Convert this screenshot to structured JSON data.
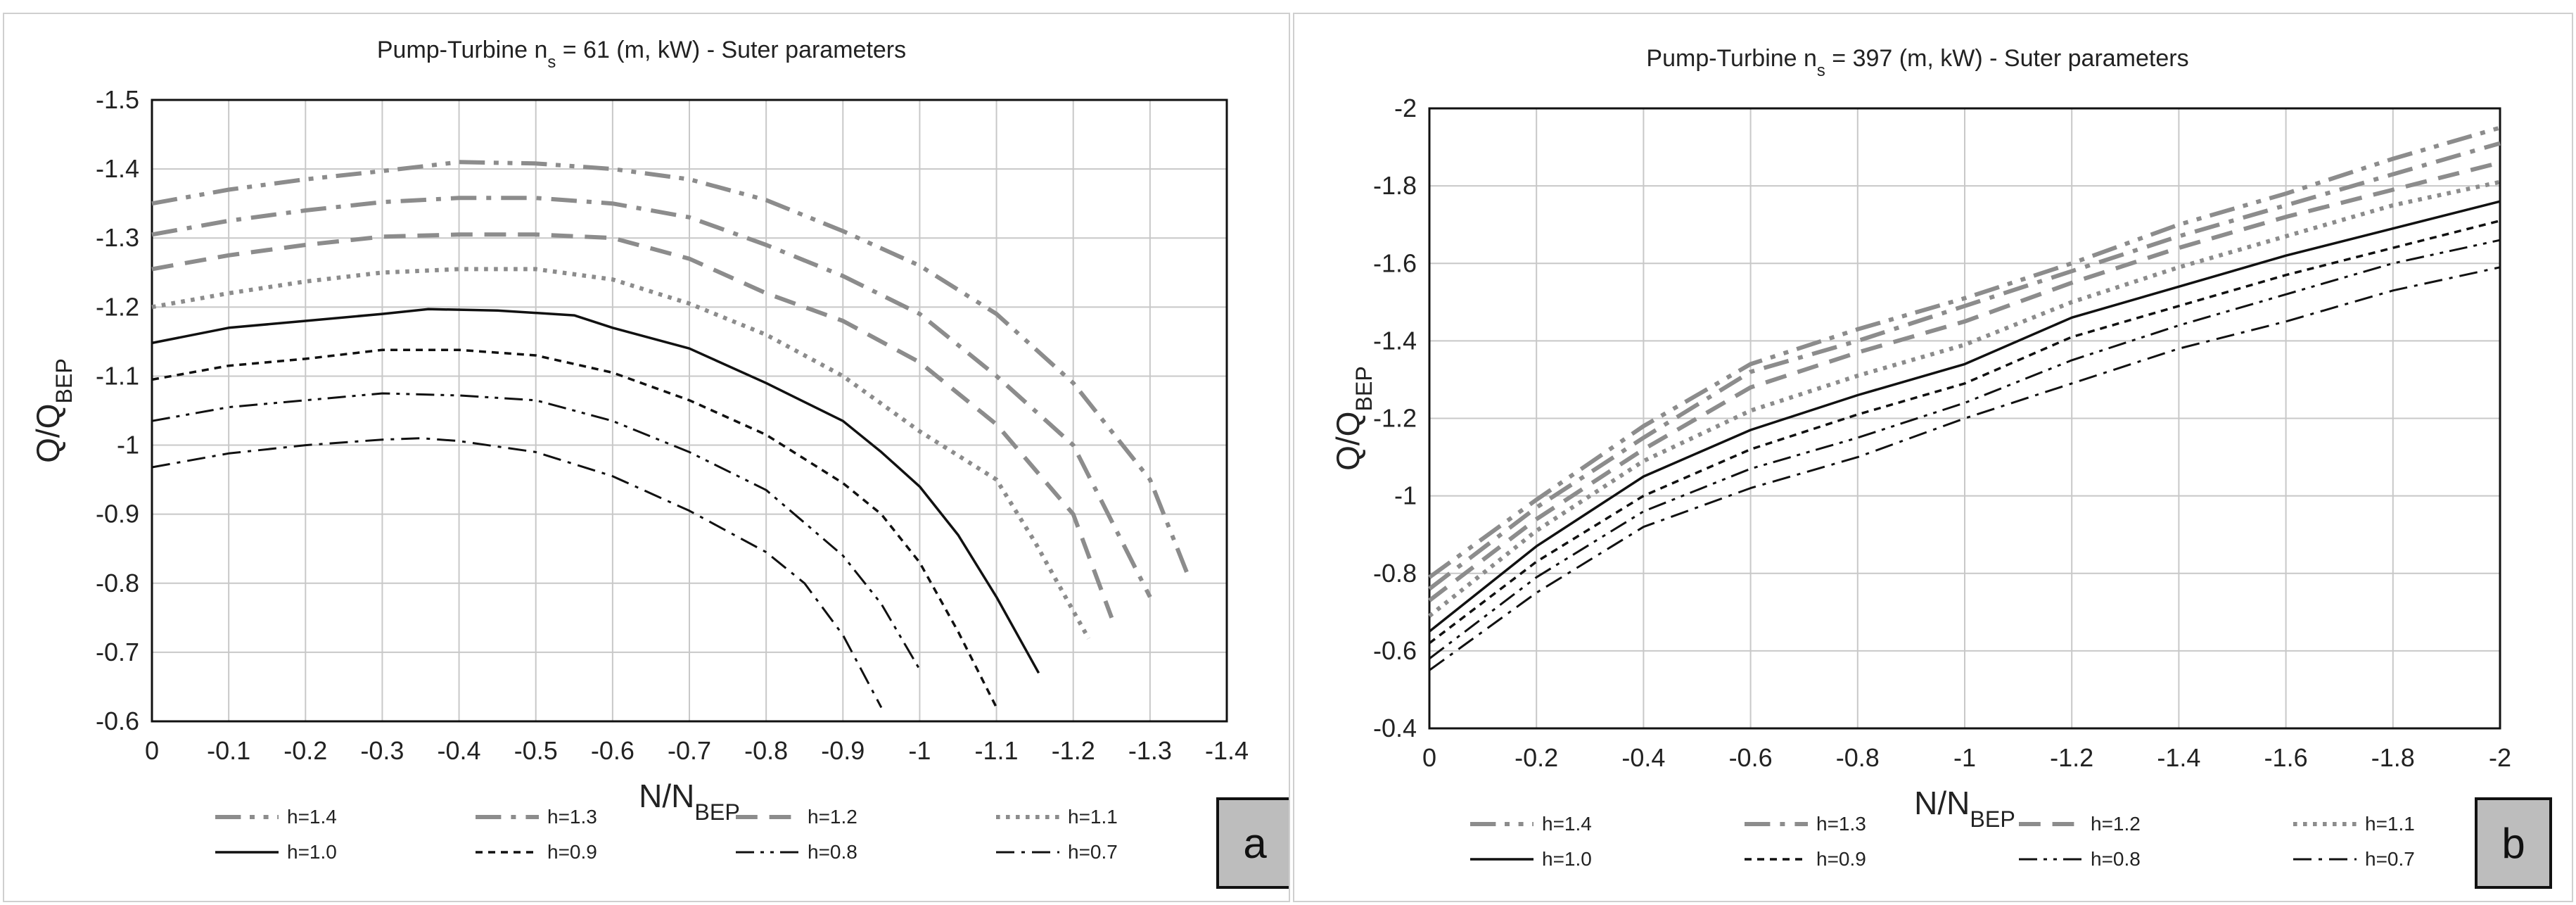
{
  "chart_data": [
    {
      "type": "line",
      "title_prefix": "Pump-Turbine  n",
      "title_sub": "s",
      "title_suffix": " = 61 (m, kW) - Suter parameters",
      "xlabel_main": "N/N",
      "xlabel_sub": "BEP",
      "ylabel_main": "Q/Q",
      "ylabel_sub": "BEP",
      "panel_label": "a",
      "xlim": [
        0,
        -1.4
      ],
      "ylim": [
        -0.6,
        -1.5
      ],
      "x_ticks": [
        "0",
        "-0.1",
        "-0.2",
        "-0.3",
        "-0.4",
        "-0.5",
        "-0.6",
        "-0.7",
        "-0.8",
        "-0.9",
        "-1",
        "-1.1",
        "-1.2",
        "-1.3",
        "-1.4"
      ],
      "y_ticks": [
        "-1.5",
        "-1.4",
        "-1.3",
        "-1.2",
        "-1.1",
        "-1",
        "-0.9",
        "-0.8",
        "-0.7",
        "-0.6"
      ],
      "grid": true,
      "legend_position": "bottom",
      "series": [
        {
          "name": "h=1.4",
          "style": "dashdotdot",
          "color": "#8c8c8c",
          "width": "thick",
          "x": [
            0,
            -0.1,
            -0.2,
            -0.3,
            -0.4,
            -0.5,
            -0.6,
            -0.7,
            -0.8,
            -0.9,
            -1.0,
            -1.1,
            -1.2,
            -1.3,
            -1.35
          ],
          "y": [
            -1.35,
            -1.37,
            -1.385,
            -1.397,
            -1.41,
            -1.408,
            -1.4,
            -1.385,
            -1.355,
            -1.31,
            -1.26,
            -1.19,
            -1.09,
            -0.95,
            -0.81
          ]
        },
        {
          "name": "h=1.3",
          "style": "dashdot",
          "color": "#8c8c8c",
          "width": "thick",
          "x": [
            0,
            -0.1,
            -0.2,
            -0.3,
            -0.4,
            -0.5,
            -0.6,
            -0.7,
            -0.8,
            -0.9,
            -1.0,
            -1.1,
            -1.2,
            -1.3
          ],
          "y": [
            -1.305,
            -1.325,
            -1.34,
            -1.352,
            -1.358,
            -1.358,
            -1.35,
            -1.33,
            -1.29,
            -1.245,
            -1.19,
            -1.1,
            -1.0,
            -0.78
          ]
        },
        {
          "name": "h=1.2",
          "style": "dash",
          "color": "#8c8c8c",
          "width": "thick",
          "x": [
            0,
            -0.1,
            -0.2,
            -0.3,
            -0.4,
            -0.5,
            -0.6,
            -0.7,
            -0.8,
            -0.9,
            -1.0,
            -1.1,
            -1.2,
            -1.25
          ],
          "y": [
            -1.255,
            -1.275,
            -1.29,
            -1.302,
            -1.305,
            -1.305,
            -1.3,
            -1.27,
            -1.22,
            -1.18,
            -1.12,
            -1.03,
            -0.9,
            -0.75
          ]
        },
        {
          "name": "h=1.1",
          "style": "dot",
          "color": "#8c8c8c",
          "width": "thick",
          "x": [
            0,
            -0.1,
            -0.2,
            -0.3,
            -0.4,
            -0.5,
            -0.6,
            -0.7,
            -0.8,
            -0.9,
            -1.0,
            -1.1,
            -1.15,
            -1.22
          ],
          "y": [
            -1.2,
            -1.22,
            -1.237,
            -1.25,
            -1.255,
            -1.255,
            -1.24,
            -1.205,
            -1.16,
            -1.1,
            -1.02,
            -0.95,
            -0.86,
            -0.72
          ]
        },
        {
          "name": "h=1.0",
          "style": "solid",
          "color": "#111111",
          "width": "normal",
          "x": [
            0,
            -0.1,
            -0.2,
            -0.3,
            -0.36,
            -0.45,
            -0.55,
            -0.6,
            -0.7,
            -0.8,
            -0.9,
            -0.95,
            -1.0,
            -1.05,
            -1.1,
            -1.155
          ],
          "y": [
            -1.148,
            -1.17,
            -1.18,
            -1.19,
            -1.197,
            -1.195,
            -1.188,
            -1.17,
            -1.14,
            -1.09,
            -1.035,
            -0.99,
            -0.94,
            -0.87,
            -0.78,
            -0.67
          ]
        },
        {
          "name": "h=0.9",
          "style": "shortdash",
          "color": "#111111",
          "width": "normal",
          "x": [
            0,
            -0.1,
            -0.2,
            -0.3,
            -0.4,
            -0.5,
            -0.6,
            -0.7,
            -0.8,
            -0.9,
            -0.95,
            -1.0,
            -1.05,
            -1.1
          ],
          "y": [
            -1.095,
            -1.115,
            -1.125,
            -1.138,
            -1.138,
            -1.13,
            -1.105,
            -1.065,
            -1.015,
            -0.945,
            -0.9,
            -0.83,
            -0.73,
            -0.62
          ]
        },
        {
          "name": "h=0.8",
          "style": "dashdotdot",
          "color": "#111111",
          "width": "thin",
          "x": [
            0,
            -0.1,
            -0.2,
            -0.3,
            -0.4,
            -0.5,
            -0.6,
            -0.7,
            -0.8,
            -0.9,
            -0.95,
            -1.0
          ],
          "y": [
            -1.035,
            -1.055,
            -1.065,
            -1.075,
            -1.072,
            -1.065,
            -1.035,
            -0.99,
            -0.935,
            -0.84,
            -0.77,
            -0.675
          ]
        },
        {
          "name": "h=0.7",
          "style": "dashdot",
          "color": "#111111",
          "width": "thin",
          "x": [
            0,
            -0.1,
            -0.2,
            -0.3,
            -0.35,
            -0.4,
            -0.5,
            -0.6,
            -0.7,
            -0.8,
            -0.85,
            -0.9,
            -0.95
          ],
          "y": [
            -0.968,
            -0.988,
            -1.0,
            -1.008,
            -1.01,
            -1.006,
            -0.99,
            -0.955,
            -0.905,
            -0.845,
            -0.8,
            -0.725,
            -0.62
          ]
        }
      ]
    },
    {
      "type": "line",
      "title_prefix": "Pump-Turbine  n",
      "title_sub": "s",
      "title_suffix": " = 397 (m, kW) - Suter parameters",
      "xlabel_main": "N/N",
      "xlabel_sub": "BEP",
      "ylabel_main": "Q/Q",
      "ylabel_sub": "BEP",
      "panel_label": "b",
      "xlim": [
        0,
        -2
      ],
      "ylim": [
        -0.4,
        -2
      ],
      "x_ticks": [
        "0",
        "-0.2",
        "-0.4",
        "-0.6",
        "-0.8",
        "-1",
        "-1.2",
        "-1.4",
        "-1.6",
        "-1.8",
        "-2"
      ],
      "y_ticks": [
        "-2",
        "-1.8",
        "-1.6",
        "-1.4",
        "-1.2",
        "-1",
        "-0.8",
        "-0.6",
        "-0.4"
      ],
      "grid": true,
      "legend_position": "bottom",
      "series": [
        {
          "name": "h=1.4",
          "style": "dashdotdot",
          "color": "#8c8c8c",
          "width": "thick",
          "x": [
            0,
            -0.2,
            -0.4,
            -0.6,
            -0.8,
            -1.0,
            -1.2,
            -1.4,
            -1.6,
            -1.8,
            -2.0
          ],
          "y": [
            -0.79,
            -0.99,
            -1.18,
            -1.34,
            -1.43,
            -1.51,
            -1.6,
            -1.7,
            -1.78,
            -1.87,
            -1.95
          ]
        },
        {
          "name": "h=1.3",
          "style": "dashdot",
          "color": "#8c8c8c",
          "width": "thick",
          "x": [
            0,
            -0.2,
            -0.4,
            -0.6,
            -0.8,
            -1.0,
            -1.2,
            -1.4,
            -1.6,
            -1.8,
            -2.0
          ],
          "y": [
            -0.76,
            -0.97,
            -1.15,
            -1.32,
            -1.4,
            -1.49,
            -1.58,
            -1.67,
            -1.75,
            -1.83,
            -1.91
          ]
        },
        {
          "name": "h=1.2",
          "style": "dash",
          "color": "#8c8c8c",
          "width": "thick",
          "x": [
            0,
            -0.2,
            -0.4,
            -0.6,
            -0.8,
            -1.0,
            -1.2,
            -1.4,
            -1.6,
            -1.8,
            -2.0
          ],
          "y": [
            -0.73,
            -0.94,
            -1.12,
            -1.28,
            -1.37,
            -1.45,
            -1.55,
            -1.64,
            -1.72,
            -1.79,
            -1.86
          ]
        },
        {
          "name": "h=1.1",
          "style": "dot",
          "color": "#8c8c8c",
          "width": "thick",
          "x": [
            0,
            -0.2,
            -0.4,
            -0.6,
            -0.8,
            -1.0,
            -1.2,
            -1.4,
            -1.6,
            -1.8,
            -2.0
          ],
          "y": [
            -0.69,
            -0.91,
            -1.09,
            -1.22,
            -1.31,
            -1.39,
            -1.5,
            -1.59,
            -1.67,
            -1.75,
            -1.81
          ]
        },
        {
          "name": "h=1.0",
          "style": "solid",
          "color": "#111111",
          "width": "normal",
          "x": [
            0,
            -0.2,
            -0.4,
            -0.6,
            -0.8,
            -1.0,
            -1.2,
            -1.4,
            -1.6,
            -1.8,
            -2.0
          ],
          "y": [
            -0.65,
            -0.87,
            -1.05,
            -1.17,
            -1.26,
            -1.34,
            -1.46,
            -1.54,
            -1.62,
            -1.69,
            -1.76
          ]
        },
        {
          "name": "h=0.9",
          "style": "shortdash",
          "color": "#111111",
          "width": "normal",
          "x": [
            0,
            -0.2,
            -0.4,
            -0.6,
            -0.8,
            -1.0,
            -1.2,
            -1.4,
            -1.6,
            -1.8,
            -2.0
          ],
          "y": [
            -0.62,
            -0.83,
            -1.0,
            -1.12,
            -1.21,
            -1.29,
            -1.41,
            -1.49,
            -1.57,
            -1.64,
            -1.71
          ]
        },
        {
          "name": "h=0.8",
          "style": "dashdotdot",
          "color": "#111111",
          "width": "thin",
          "x": [
            0,
            -0.2,
            -0.4,
            -0.6,
            -0.8,
            -1.0,
            -1.2,
            -1.4,
            -1.6,
            -1.8,
            -2.0
          ],
          "y": [
            -0.58,
            -0.79,
            -0.96,
            -1.07,
            -1.15,
            -1.24,
            -1.35,
            -1.44,
            -1.52,
            -1.6,
            -1.66
          ]
        },
        {
          "name": "h=0.7",
          "style": "dashdot",
          "color": "#111111",
          "width": "thin",
          "x": [
            0,
            -0.2,
            -0.4,
            -0.6,
            -0.8,
            -1.0,
            -1.2,
            -1.4,
            -1.6,
            -1.8,
            -2.0
          ],
          "y": [
            -0.55,
            -0.75,
            -0.92,
            -1.02,
            -1.1,
            -1.2,
            -1.29,
            -1.38,
            -1.45,
            -1.53,
            -1.59
          ]
        }
      ]
    }
  ]
}
